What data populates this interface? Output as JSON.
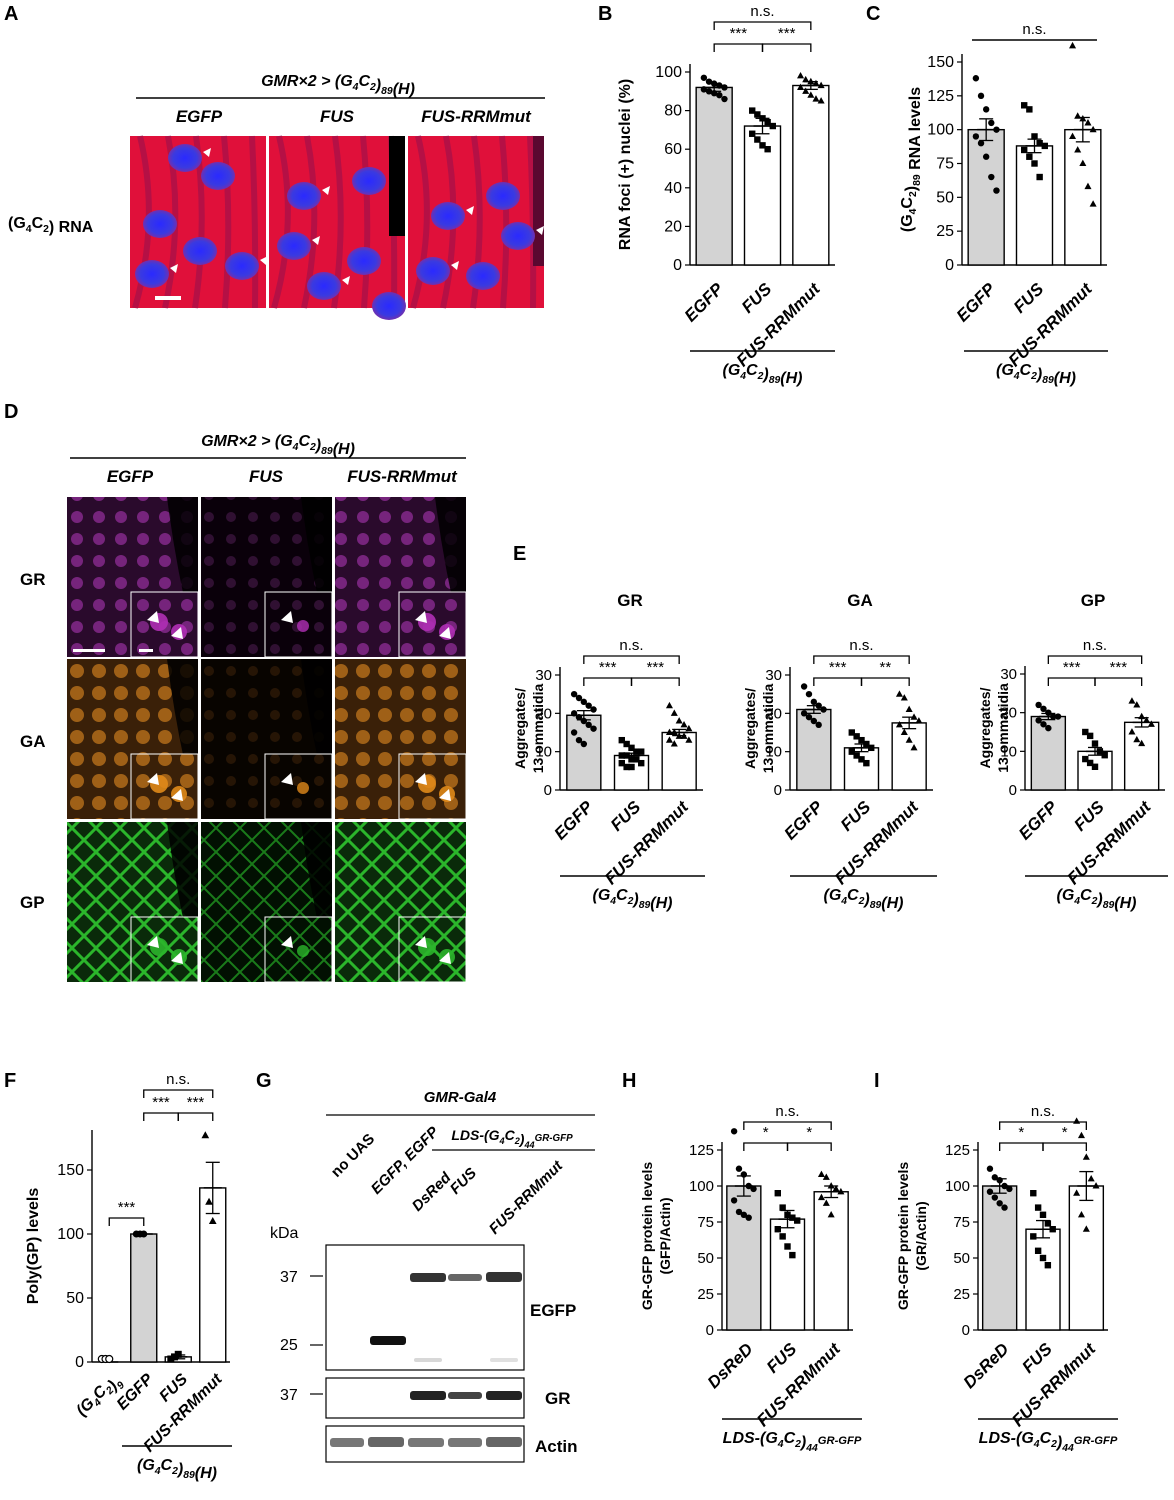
{
  "panels": {
    "A": {
      "letter": "A",
      "genotype": "GMR×2 > (G4C2)89(H)",
      "conditions": [
        "EGFP",
        "FUS",
        "FUS-RRMmut"
      ],
      "row_label": "(G4C2) RNA"
    },
    "B": {
      "letter": "B",
      "sig": [
        "n.s.",
        "***",
        "***"
      ],
      "group_label": "(G4C2)89(H)"
    },
    "C": {
      "letter": "C",
      "sig": [
        "n.s."
      ],
      "group_label": "(G4C2)89(H)"
    },
    "D": {
      "letter": "D",
      "genotype": "GMR×2 > (G4C2)89(H)",
      "conditions": [
        "EGFP",
        "FUS",
        "FUS-RRMmut"
      ],
      "rows": [
        "GR",
        "GA",
        "GP"
      ],
      "colors": {
        "GR": "#b02fb5",
        "GA": "#e08a1a",
        "GP": "#2bb52b"
      }
    },
    "E": {
      "letter": "E",
      "group_label": "(G4C2)89(H)",
      "sig": {
        "GR": [
          "n.s.",
          "***",
          "***"
        ],
        "GA": [
          "n.s.",
          "***",
          "**"
        ],
        "GP": [
          "n.s.",
          "***",
          "***"
        ]
      }
    },
    "F": {
      "letter": "F",
      "sig": [
        "n.s.",
        "***",
        "***",
        "***"
      ],
      "group_label": "(G4C2)89(H)"
    },
    "G": {
      "letter": "G",
      "driver": "GMR-Gal4",
      "construct": "LDS-(G4C2)44GR-GFP",
      "lanes": [
        "no UAS",
        "EGFP, EGFP",
        "DsRed",
        "FUS",
        "FUS-RRMmut"
      ],
      "kda_label": "kDa",
      "markers": [
        "37",
        "25",
        "37"
      ],
      "blots": [
        "EGFP",
        "GR",
        "Actin"
      ]
    },
    "H": {
      "letter": "H",
      "sig": [
        "n.s.",
        "*",
        "*"
      ],
      "group_label": "LDS-(G4C2)44GR-GFP"
    },
    "I": {
      "letter": "I",
      "sig": [
        "n.s.",
        "*",
        "*"
      ],
      "group_label": "LDS-(G4C2)44GR-GFP"
    }
  },
  "chart_data": [
    {
      "id": "B",
      "type": "bar",
      "ylabel": "RNA foci (+) nuclei (%)",
      "categories": [
        "EGFP",
        "FUS",
        "FUS-RRMmut"
      ],
      "values": [
        92,
        72,
        93
      ],
      "errors": [
        2,
        4,
        2
      ],
      "ylim": [
        0,
        100
      ],
      "yticks": [
        0,
        20,
        40,
        60,
        80,
        100
      ],
      "markers": [
        "circle",
        "square",
        "triangle"
      ],
      "points": [
        [
          97,
          95,
          94,
          93,
          92,
          91,
          90,
          89,
          88,
          86
        ],
        [
          80,
          78,
          76,
          74,
          72,
          68,
          65,
          62,
          60
        ],
        [
          98,
          96,
          95,
          94,
          93,
          92,
          90,
          88,
          86,
          85
        ]
      ]
    },
    {
      "id": "C",
      "type": "bar",
      "ylabel": "(G4C2)89 RNA levels",
      "categories": [
        "EGFP",
        "FUS",
        "FUS-RRMmut"
      ],
      "values": [
        100,
        88,
        100
      ],
      "errors": [
        8,
        5,
        9
      ],
      "ylim": [
        0,
        150
      ],
      "yticks": [
        0,
        25,
        50,
        75,
        100,
        125,
        150
      ],
      "markers": [
        "circle",
        "square",
        "triangle"
      ],
      "points": [
        [
          138,
          125,
          115,
          105,
          100,
          95,
          90,
          80,
          65,
          55
        ],
        [
          118,
          115,
          95,
          90,
          88,
          85,
          80,
          75,
          65
        ],
        [
          162,
          110,
          108,
          105,
          100,
          95,
          85,
          75,
          58,
          45
        ]
      ]
    },
    {
      "id": "E-GR",
      "type": "bar",
      "title": "GR",
      "ylabel": "Aggregates/ 13 ommatidia",
      "categories": [
        "EGFP",
        "FUS",
        "FUS-RRMmut"
      ],
      "values": [
        19.5,
        9,
        15
      ],
      "errors": [
        1.2,
        0.6,
        0.8
      ],
      "ylim": [
        0,
        30
      ],
      "yticks": [
        0,
        10,
        20,
        30
      ],
      "markers": [
        "circle",
        "square",
        "triangle"
      ],
      "points": [
        [
          25,
          24,
          23,
          22,
          21,
          20,
          19,
          18,
          17,
          16,
          15,
          13,
          12
        ],
        [
          13,
          12,
          11,
          10,
          10,
          9,
          9,
          8,
          8,
          7,
          7,
          6,
          6
        ],
        [
          22,
          20,
          18,
          17,
          16,
          15,
          15,
          14,
          14,
          13,
          13,
          12
        ]
      ]
    },
    {
      "id": "E-GA",
      "type": "bar",
      "title": "GA",
      "ylabel": "Aggregates/ 13 ommatidia",
      "categories": [
        "EGFP",
        "FUS",
        "FUS-RRMmut"
      ],
      "values": [
        21,
        11,
        17.5
      ],
      "errors": [
        1,
        1,
        1.5
      ],
      "ylim": [
        0,
        30
      ],
      "yticks": [
        0,
        10,
        20,
        30
      ],
      "markers": [
        "circle",
        "square",
        "triangle"
      ],
      "points": [
        [
          27,
          25,
          23,
          22,
          21,
          20,
          19,
          18,
          17
        ],
        [
          15,
          14,
          13,
          12,
          11,
          10,
          9,
          8,
          7
        ],
        [
          25,
          24,
          21,
          19,
          18,
          17,
          15,
          13,
          11
        ]
      ]
    },
    {
      "id": "E-GP",
      "type": "bar",
      "title": "GP",
      "ylabel": "Aggregates/ 13 ommatidia",
      "categories": [
        "EGFP",
        "FUS",
        "FUS-RRMmut"
      ],
      "values": [
        19,
        10,
        17.5
      ],
      "errors": [
        0.8,
        1,
        1.2
      ],
      "ylim": [
        0,
        30
      ],
      "yticks": [
        0,
        10,
        20,
        30
      ],
      "markers": [
        "circle",
        "square",
        "triangle"
      ],
      "points": [
        [
          22,
          21,
          20,
          19,
          19,
          18,
          17,
          16
        ],
        [
          15,
          14,
          12,
          10,
          9,
          8,
          7,
          6
        ],
        [
          23,
          22,
          19,
          18,
          17,
          15,
          13,
          12
        ]
      ]
    },
    {
      "id": "F",
      "type": "bar",
      "ylabel": "Poly(GP) levels",
      "categories": [
        "(G4C2)9",
        "EGFP",
        "FUS",
        "FUS-RRMmut"
      ],
      "values": [
        0,
        100,
        4,
        136
      ],
      "errors": [
        0,
        0,
        1.5,
        20
      ],
      "ylim": [
        0,
        180
      ],
      "yticks": [
        0,
        50,
        100,
        150
      ],
      "markers": [
        "circle-open",
        "circle",
        "square",
        "triangle"
      ],
      "points": [
        [
          0,
          0,
          0
        ],
        [
          100,
          100,
          100
        ],
        [
          2,
          4,
          6
        ],
        [
          177,
          125,
          110
        ]
      ]
    },
    {
      "id": "H",
      "type": "bar",
      "ylabel": "GR-GFP protein levels (GFP/Actin)",
      "categories": [
        "DsReD",
        "FUS",
        "FUS-RRMmut"
      ],
      "values": [
        100,
        77,
        96
      ],
      "errors": [
        7,
        6,
        4
      ],
      "ylim": [
        0,
        140
      ],
      "yticks": [
        0,
        25,
        50,
        75,
        100,
        125
      ],
      "markers": [
        "circle",
        "square",
        "triangle"
      ],
      "points": [
        [
          138,
          112,
          108,
          100,
          98,
          90,
          82,
          80,
          78
        ],
        [
          95,
          85,
          80,
          78,
          76,
          70,
          65,
          58,
          52
        ],
        [
          108,
          106,
          100,
          98,
          96,
          92,
          88,
          80
        ]
      ]
    },
    {
      "id": "I",
      "type": "bar",
      "ylabel": "GR-GFP protein levels (GR/Actin)",
      "categories": [
        "DsReD",
        "FUS",
        "FUS-RRMmut"
      ],
      "values": [
        100,
        70,
        100
      ],
      "errors": [
        5,
        6,
        10
      ],
      "ylim": [
        0,
        140
      ],
      "yticks": [
        0,
        25,
        50,
        75,
        100,
        125
      ],
      "markers": [
        "circle",
        "square",
        "triangle"
      ],
      "points": [
        [
          112,
          106,
          104,
          100,
          98,
          96,
          92,
          88,
          85
        ],
        [
          95,
          85,
          80,
          74,
          70,
          65,
          55,
          50,
          45
        ],
        [
          145,
          135,
          120,
          105,
          100,
          95,
          80,
          70
        ]
      ]
    }
  ]
}
